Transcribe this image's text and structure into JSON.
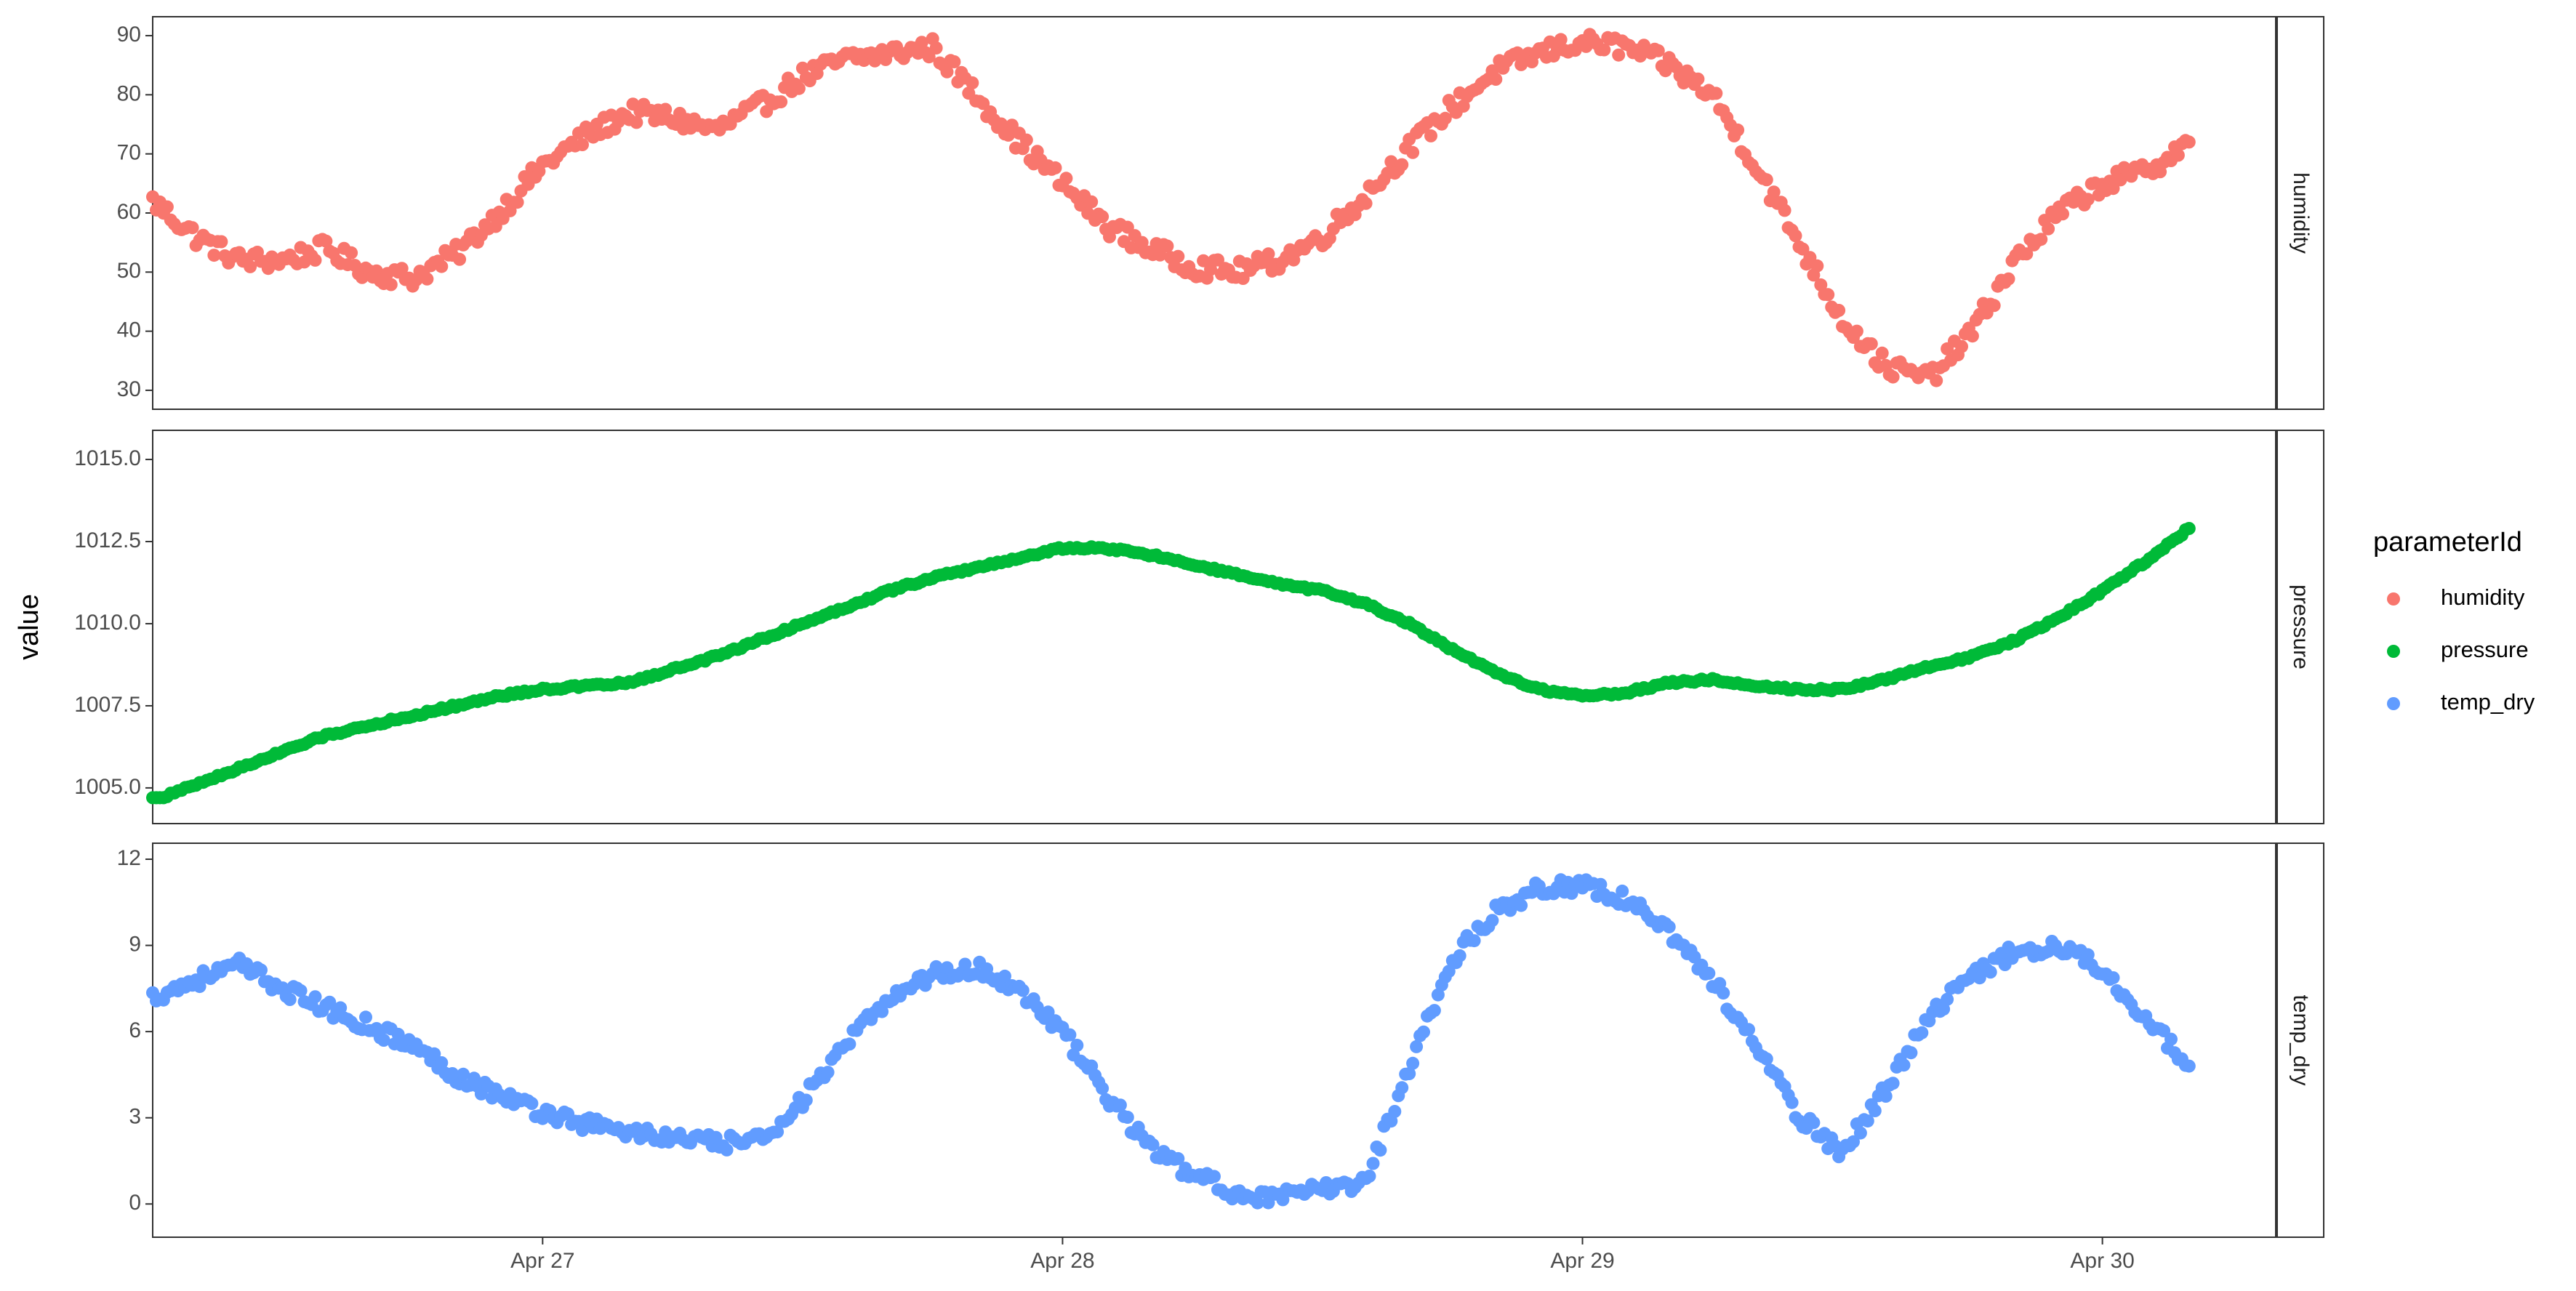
{
  "chart_data": {
    "type": "scatter",
    "title": "",
    "xlabel": "",
    "ylabel": "value",
    "x_tick_labels": [
      "Apr 27",
      "Apr 28",
      "Apr 29",
      "Apr 30"
    ],
    "legend": {
      "title": "parameterId",
      "placement": "right",
      "entries": [
        "humidity",
        "pressure",
        "temp_dry"
      ]
    },
    "colors": {
      "humidity": "#f8766d",
      "pressure": "#00ba38",
      "temp_dry": "#619cff"
    },
    "x_range": [
      "2020-04-26 06:00",
      "2020-04-30 08:00"
    ],
    "grid": false,
    "facets": [
      {
        "strip_label": "humidity",
        "ylim": [
          29.5,
          90.5
        ],
        "y_ticks": [
          30,
          40,
          50,
          60,
          70,
          80,
          90
        ],
        "y_tick_labels": [
          "30",
          "40",
          "50",
          "60",
          "70",
          "80",
          "90"
        ],
        "series": {
          "name": "humidity",
          "x": [
            "2020-04-26 06:00",
            "2020-04-26 08:00",
            "2020-04-26 10:00",
            "2020-04-26 12:00",
            "2020-04-26 14:00",
            "2020-04-26 16:00",
            "2020-04-26 18:00",
            "2020-04-26 20:00",
            "2020-04-26 22:00",
            "2020-04-27 00:00",
            "2020-04-27 02:00",
            "2020-04-27 04:00",
            "2020-04-27 06:00",
            "2020-04-27 08:00",
            "2020-04-27 10:00",
            "2020-04-27 12:00",
            "2020-04-27 14:00",
            "2020-04-27 16:00",
            "2020-04-27 18:00",
            "2020-04-27 20:00",
            "2020-04-27 22:00",
            "2020-04-28 00:00",
            "2020-04-28 02:00",
            "2020-04-28 04:00",
            "2020-04-28 06:00",
            "2020-04-28 08:00",
            "2020-04-28 10:00",
            "2020-04-28 12:00",
            "2020-04-28 14:00",
            "2020-04-28 16:00",
            "2020-04-28 18:00",
            "2020-04-28 20:00",
            "2020-04-28 22:00",
            "2020-04-29 00:00",
            "2020-04-29 02:00",
            "2020-04-29 04:00",
            "2020-04-29 06:00",
            "2020-04-29 08:00",
            "2020-04-29 10:00",
            "2020-04-29 12:00",
            "2020-04-29 14:00",
            "2020-04-29 16:00",
            "2020-04-29 18:00",
            "2020-04-29 20:00",
            "2020-04-29 22:00",
            "2020-04-30 00:00",
            "2020-04-30 02:00",
            "2020-04-30 04:00"
          ],
          "y": [
            62,
            56,
            52,
            52,
            54,
            50,
            49,
            53,
            60,
            68,
            73,
            77,
            76,
            74,
            78,
            83,
            86,
            87,
            88,
            80,
            72,
            65,
            58,
            54,
            51,
            50,
            52,
            56,
            63,
            71,
            78,
            84,
            87,
            89,
            88,
            85,
            80,
            68,
            55,
            42,
            34,
            32,
            40,
            52,
            60,
            65,
            67,
            72
          ]
        }
      },
      {
        "strip_label": "pressure",
        "ylim": [
          1004.4,
          1015.4
        ],
        "y_ticks": [
          1005.0,
          1007.5,
          1010.0,
          1012.5,
          1015.0
        ],
        "y_tick_labels": [
          "1005.0",
          "1007.5",
          "1010.0",
          "1012.5",
          "1015.0"
        ],
        "series": {
          "name": "pressure",
          "x": [
            "2020-04-26 06:00",
            "2020-04-26 08:00",
            "2020-04-26 10:00",
            "2020-04-26 12:00",
            "2020-04-26 14:00",
            "2020-04-26 16:00",
            "2020-04-26 18:00",
            "2020-04-26 20:00",
            "2020-04-26 22:00",
            "2020-04-27 00:00",
            "2020-04-27 02:00",
            "2020-04-27 04:00",
            "2020-04-27 06:00",
            "2020-04-27 08:00",
            "2020-04-27 10:00",
            "2020-04-27 12:00",
            "2020-04-27 14:00",
            "2020-04-27 16:00",
            "2020-04-27 18:00",
            "2020-04-27 20:00",
            "2020-04-27 22:00",
            "2020-04-28 00:00",
            "2020-04-28 02:00",
            "2020-04-28 04:00",
            "2020-04-28 06:00",
            "2020-04-28 08:00",
            "2020-04-28 10:00",
            "2020-04-28 12:00",
            "2020-04-28 14:00",
            "2020-04-28 16:00",
            "2020-04-28 18:00",
            "2020-04-28 20:00",
            "2020-04-28 22:00",
            "2020-04-29 00:00",
            "2020-04-29 02:00",
            "2020-04-29 04:00",
            "2020-04-29 06:00",
            "2020-04-29 08:00",
            "2020-04-29 10:00",
            "2020-04-29 12:00",
            "2020-04-29 14:00",
            "2020-04-29 16:00",
            "2020-04-29 18:00",
            "2020-04-29 20:00",
            "2020-04-29 22:00",
            "2020-04-30 00:00",
            "2020-04-30 02:00",
            "2020-04-30 04:00"
          ],
          "y": [
            1004.6,
            1005.1,
            1005.6,
            1006.1,
            1006.6,
            1006.9,
            1007.2,
            1007.5,
            1007.8,
            1008.0,
            1008.1,
            1008.2,
            1008.6,
            1009.0,
            1009.5,
            1010.0,
            1010.5,
            1011.0,
            1011.4,
            1011.7,
            1012.0,
            1012.3,
            1012.3,
            1012.1,
            1011.8,
            1011.5,
            1011.2,
            1011.0,
            1010.6,
            1010.0,
            1009.2,
            1008.5,
            1008.0,
            1007.8,
            1007.9,
            1008.2,
            1008.3,
            1008.1,
            1008.0,
            1008.0,
            1008.3,
            1008.7,
            1009.0,
            1009.5,
            1010.2,
            1011.0,
            1011.9,
            1012.9
          ]
        }
      },
      {
        "strip_label": "temp_dry",
        "ylim": [
          -0.6,
          12.0
        ],
        "y_ticks": [
          0,
          3,
          6,
          9,
          12
        ],
        "y_tick_labels": [
          "0",
          "3",
          "6",
          "9",
          "12"
        ],
        "series": {
          "name": "temp_dry",
          "x": [
            "2020-04-26 06:00",
            "2020-04-26 08:00",
            "2020-04-26 10:00",
            "2020-04-26 12:00",
            "2020-04-26 14:00",
            "2020-04-26 16:00",
            "2020-04-26 18:00",
            "2020-04-26 20:00",
            "2020-04-26 22:00",
            "2020-04-27 00:00",
            "2020-04-27 02:00",
            "2020-04-27 04:00",
            "2020-04-27 06:00",
            "2020-04-27 08:00",
            "2020-04-27 10:00",
            "2020-04-27 12:00",
            "2020-04-27 14:00",
            "2020-04-27 16:00",
            "2020-04-27 18:00",
            "2020-04-27 20:00",
            "2020-04-27 22:00",
            "2020-04-28 00:00",
            "2020-04-28 02:00",
            "2020-04-28 04:00",
            "2020-04-28 06:00",
            "2020-04-28 08:00",
            "2020-04-28 10:00",
            "2020-04-28 12:00",
            "2020-04-28 14:00",
            "2020-04-28 16:00",
            "2020-04-28 18:00",
            "2020-04-28 20:00",
            "2020-04-28 22:00",
            "2020-04-29 00:00",
            "2020-04-29 02:00",
            "2020-04-29 04:00",
            "2020-04-29 06:00",
            "2020-04-29 08:00",
            "2020-04-29 10:00",
            "2020-04-29 12:00",
            "2020-04-29 14:00",
            "2020-04-29 16:00",
            "2020-04-29 18:00",
            "2020-04-29 20:00",
            "2020-04-29 22:00",
            "2020-04-30 00:00",
            "2020-04-30 02:00",
            "2020-04-30 04:00"
          ],
          "y": [
            7.2,
            7.8,
            8.3,
            7.5,
            6.8,
            6.2,
            5.5,
            4.5,
            3.8,
            3.2,
            2.8,
            2.5,
            2.3,
            2.1,
            2.2,
            3.6,
            5.5,
            7.2,
            8.0,
            8.2,
            7.5,
            6.0,
            3.8,
            2.0,
            1.0,
            0.4,
            0.2,
            0.5,
            0.8,
            4.8,
            8.5,
            10.2,
            11.0,
            11.1,
            10.6,
            9.5,
            7.8,
            5.5,
            3.0,
            1.8,
            4.0,
            6.5,
            8.0,
            8.8,
            9.0,
            8.2,
            6.5,
            4.8
          ]
        }
      }
    ]
  }
}
